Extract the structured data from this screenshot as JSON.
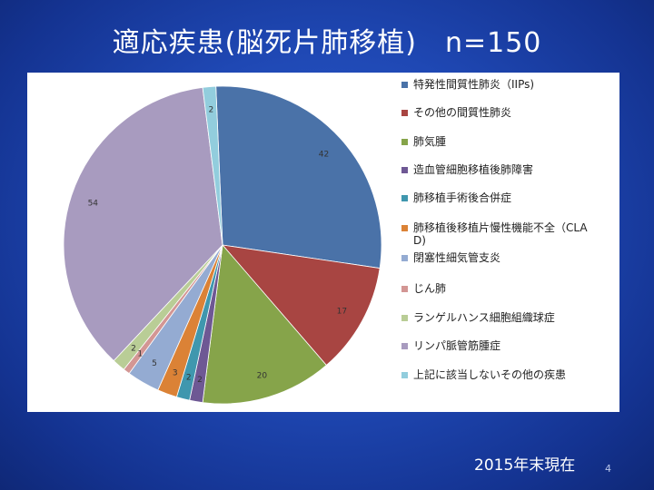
{
  "slide": {
    "title": "適応疾患(脳死片肺移植)　n=150",
    "footer_note": "2015年末現在",
    "page_number": "4"
  },
  "chart_data": {
    "type": "pie",
    "start_angle_deg": -2.4,
    "direction": "clockwise",
    "legend_position": "right",
    "categories": [
      "特発性間質性肺炎（IIPs)",
      "その他の間質性肺炎",
      "肺気腫",
      "造血管細胞移植後肺障害",
      "肺移植手術後合併症",
      "肺移植後移植片慢性機能不全（CLAD)",
      "閉塞性細気管支炎",
      "じん肺",
      "ランゲルハンス細胞組織球症",
      "リンパ脈管筋腫症",
      "上記に該当しないその他の疾患"
    ],
    "legend_lines": [
      [
        "特発性間質性肺炎（IIPs)"
      ],
      [
        "その他の間質性肺炎"
      ],
      [
        "肺気腫"
      ],
      [
        "造血管細胞移植後肺障害"
      ],
      [
        "肺移植手術後合併症"
      ],
      [
        "肺移植後移植片慢性機能不全（CLA",
        "D)"
      ],
      [
        "閉塞性細気管支炎"
      ],
      [
        "じん肺"
      ],
      [
        "ランゲルハンス細胞組織球症"
      ],
      [
        "リンパ脈管筋腫症"
      ],
      [
        "上記に該当しないその他の疾患"
      ]
    ],
    "values": [
      42,
      17,
      20,
      2,
      2,
      3,
      5,
      1,
      2,
      54,
      2
    ],
    "colors": [
      "#4a72a8",
      "#a84542",
      "#86a44a",
      "#6e5894",
      "#3f97ae",
      "#db8236",
      "#94abd2",
      "#d39694",
      "#b9cd96",
      "#a89bbf",
      "#92cddd"
    ]
  }
}
